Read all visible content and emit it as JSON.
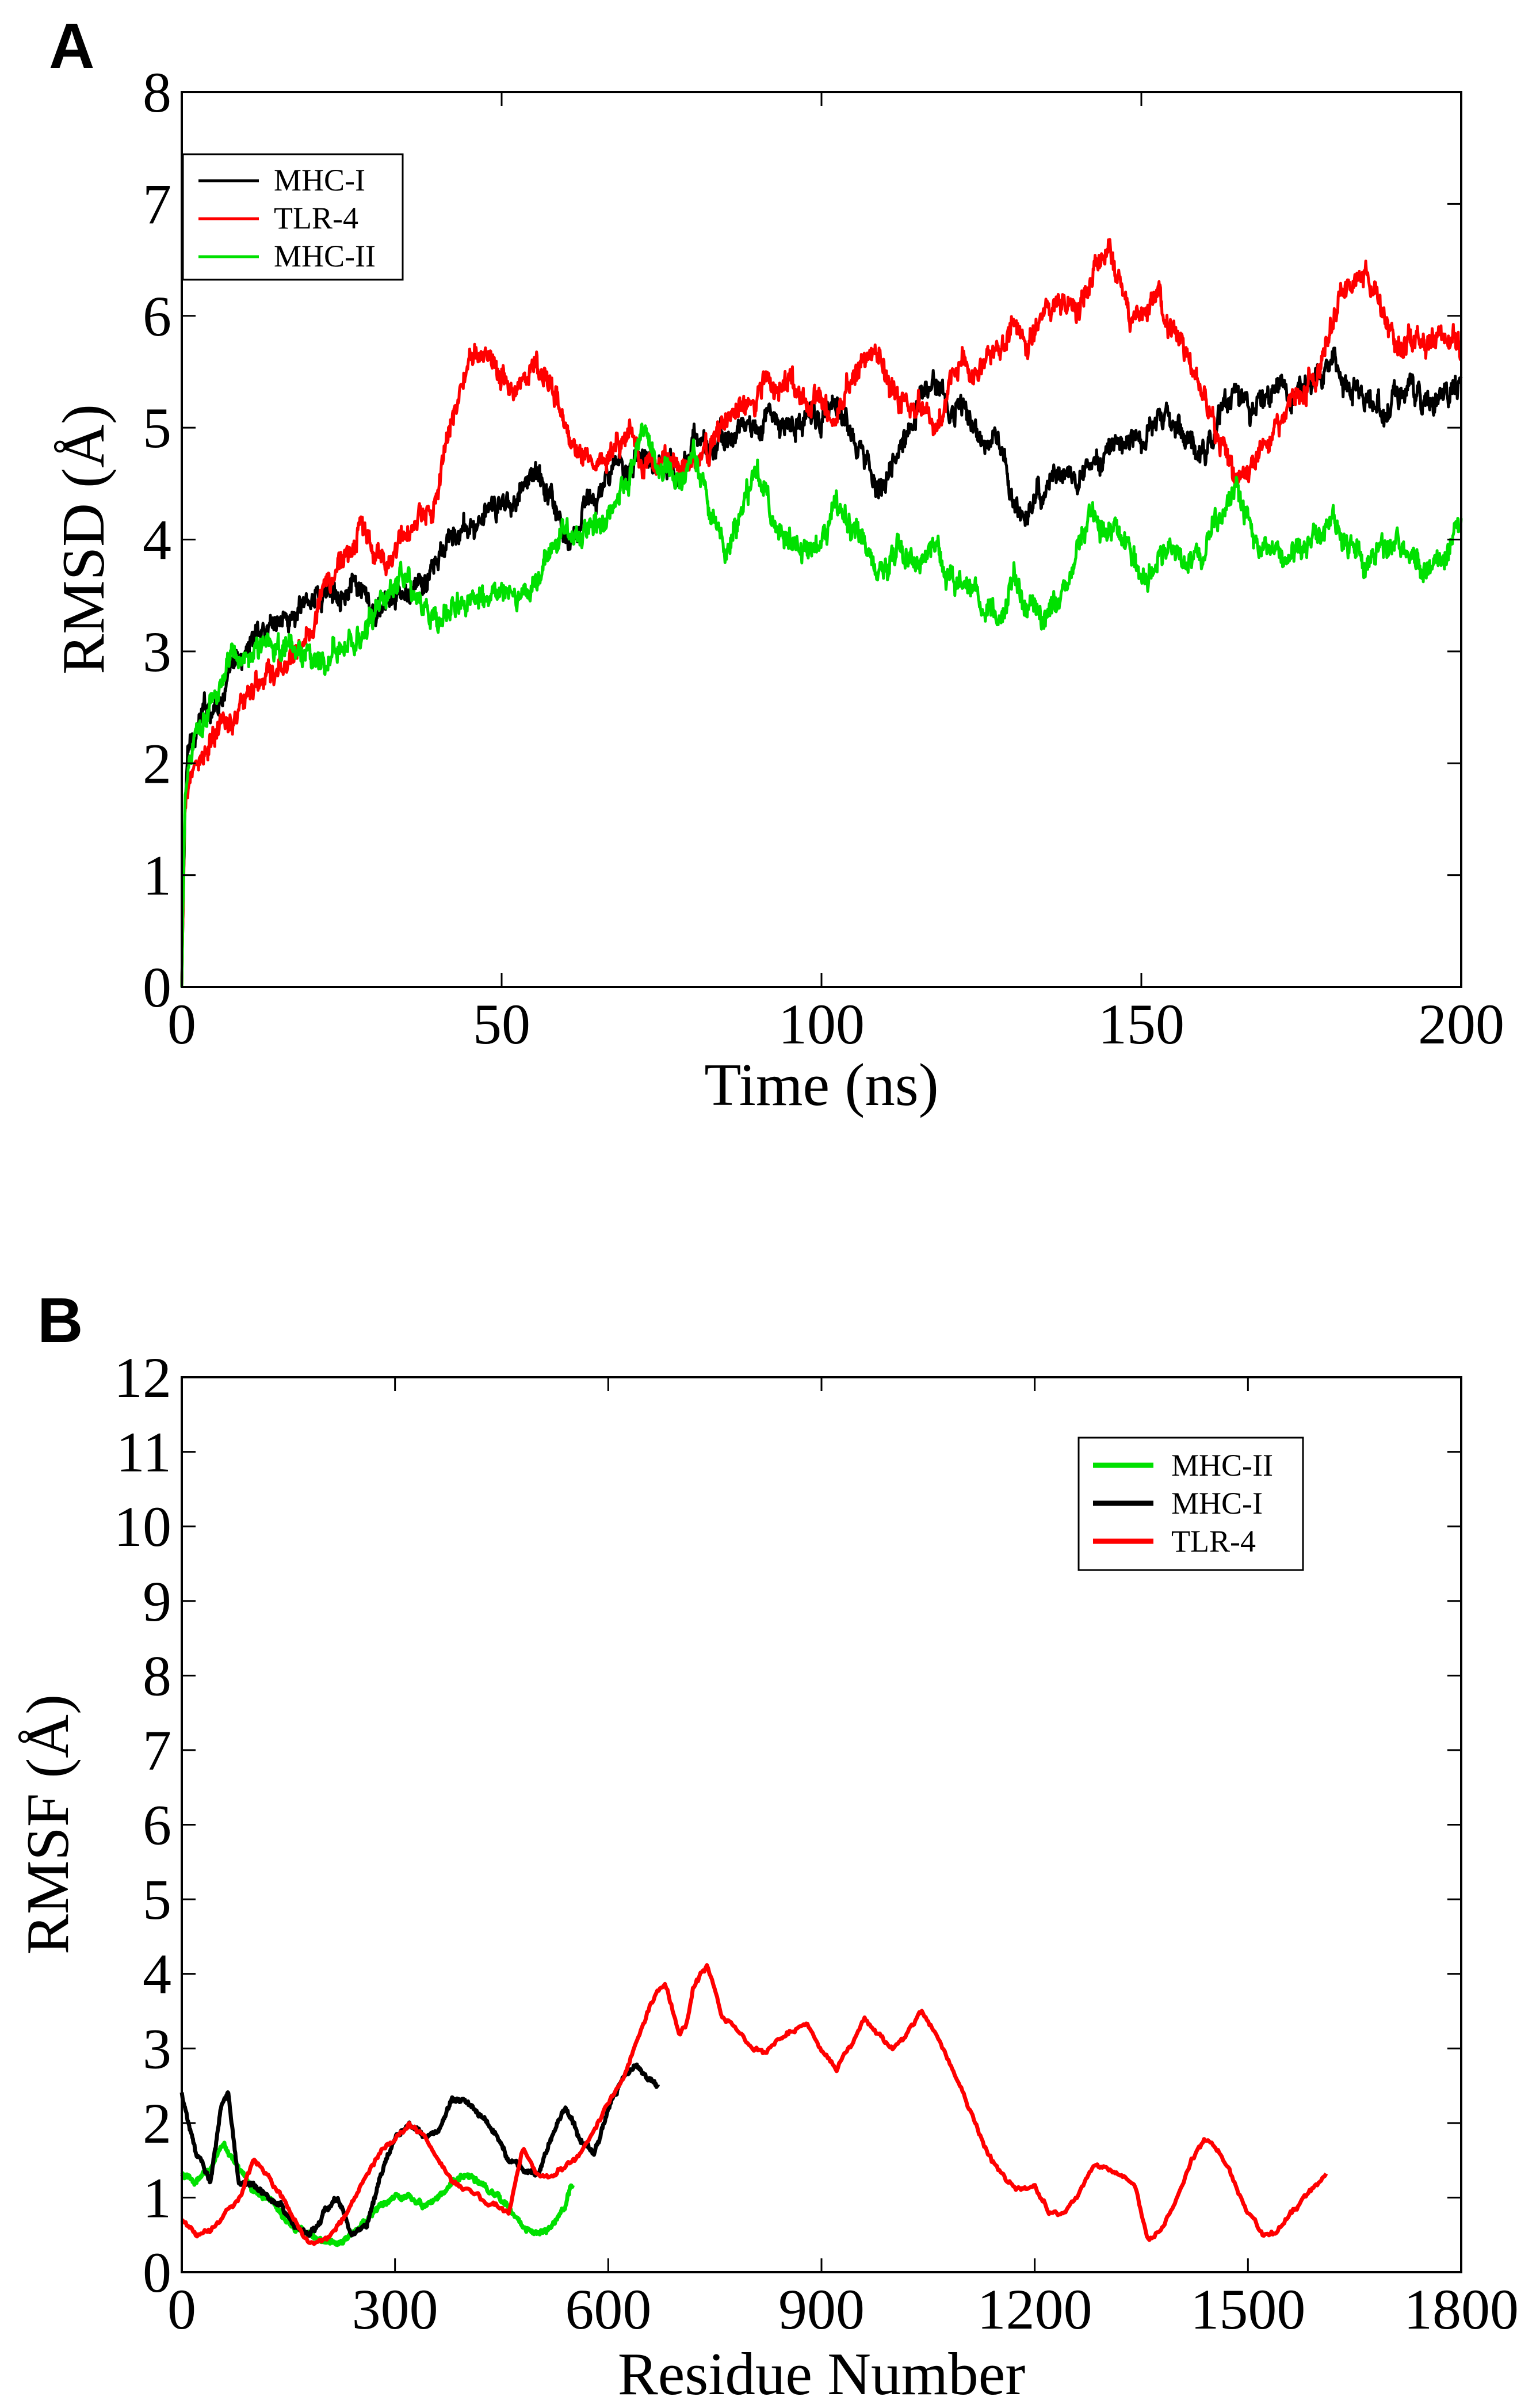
{
  "chart_data": [
    {
      "panel_label": "A",
      "type": "line",
      "xlabel": "Time (ns)",
      "ylabel": "RMSD (Å)",
      "xlim": [
        0,
        200
      ],
      "ylim": [
        0,
        8
      ],
      "xticks": [
        0,
        50,
        100,
        150,
        200
      ],
      "xtick_labels": [
        "0",
        "50",
        "100",
        "150",
        "200"
      ],
      "yticks": [
        0,
        1,
        2,
        3,
        4,
        5,
        6,
        7,
        8
      ],
      "ytick_labels": [
        "0",
        "1",
        "2",
        "3",
        "4",
        "5",
        "6",
        "7",
        "8"
      ],
      "grid": false,
      "legend_position": "top-left",
      "noise_amplitude": 0.12,
      "series": [
        {
          "name": "MHC-I",
          "color": "#000000",
          "x": [
            0,
            0.5,
            1,
            2,
            4,
            6,
            8,
            10,
            12,
            15,
            18,
            20,
            22,
            25,
            28,
            30,
            32,
            35,
            38,
            40,
            42,
            45,
            48,
            50,
            52,
            55,
            58,
            60,
            62,
            65,
            68,
            70,
            72,
            75,
            78,
            80,
            82,
            85,
            88,
            90,
            92,
            95,
            98,
            100,
            102,
            105,
            108,
            110,
            112,
            115,
            118,
            120,
            122,
            125,
            128,
            130,
            132,
            135,
            138,
            140,
            142,
            145,
            148,
            150,
            152,
            155,
            158,
            160,
            162,
            165,
            168,
            170,
            172,
            175,
            178,
            180,
            182,
            185,
            188,
            190,
            192,
            195,
            198,
            200
          ],
          "values": [
            0,
            1.6,
            2.1,
            2.3,
            2.5,
            2.6,
            2.8,
            3.0,
            3.2,
            3.3,
            3.3,
            3.5,
            3.5,
            3.6,
            3.5,
            3.3,
            3.4,
            3.5,
            3.6,
            3.8,
            4.0,
            4.1,
            4.2,
            4.3,
            4.4,
            4.6,
            4.4,
            4.0,
            4.2,
            4.4,
            4.6,
            4.7,
            4.8,
            4.7,
            4.6,
            4.9,
            4.8,
            4.9,
            5.0,
            5.0,
            5.1,
            5.0,
            5.1,
            5.0,
            5.2,
            5.0,
            4.6,
            4.5,
            4.7,
            5.2,
            5.4,
            5.2,
            5.2,
            4.9,
            4.8,
            4.3,
            4.2,
            4.5,
            4.6,
            4.5,
            4.7,
            4.8,
            4.9,
            4.9,
            5.1,
            5.0,
            4.8,
            4.8,
            5.1,
            5.3,
            5.1,
            5.3,
            5.4,
            5.3,
            5.5,
            5.6,
            5.4,
            5.3,
            5.2,
            5.3,
            5.4,
            5.2,
            5.3,
            5.4
          ]
        },
        {
          "name": "TLR-4",
          "color": "#ff0000",
          "x": [
            0,
            0.5,
            1,
            2,
            4,
            6,
            8,
            10,
            12,
            15,
            18,
            20,
            22,
            25,
            28,
            30,
            32,
            35,
            38,
            40,
            42,
            45,
            48,
            50,
            52,
            55,
            58,
            60,
            62,
            65,
            68,
            70,
            72,
            75,
            78,
            80,
            82,
            85,
            88,
            90,
            92,
            95,
            98,
            100,
            102,
            105,
            108,
            110,
            112,
            115,
            118,
            120,
            122,
            125,
            128,
            130,
            132,
            135,
            138,
            140,
            142,
            145,
            148,
            150,
            152,
            155,
            158,
            160,
            162,
            165,
            168,
            170,
            172,
            175,
            178,
            180,
            182,
            185,
            188,
            190,
            192,
            195,
            198,
            200
          ],
          "values": [
            0,
            1.5,
            1.8,
            2.0,
            2.1,
            2.3,
            2.4,
            2.6,
            2.7,
            2.8,
            3.0,
            3.2,
            3.5,
            3.8,
            4.1,
            3.9,
            3.8,
            4.0,
            4.2,
            4.4,
            5.0,
            5.6,
            5.7,
            5.5,
            5.3,
            5.6,
            5.3,
            5.0,
            4.8,
            4.7,
            4.9,
            5.0,
            4.7,
            4.8,
            4.6,
            4.7,
            4.8,
            5.0,
            5.2,
            5.3,
            5.4,
            5.4,
            5.2,
            5.3,
            5.1,
            5.4,
            5.8,
            5.5,
            5.2,
            5.3,
            5.0,
            5.4,
            5.6,
            5.5,
            5.8,
            5.9,
            5.7,
            6.0,
            6.2,
            6.0,
            6.3,
            6.6,
            6.1,
            6.0,
            6.2,
            5.9,
            5.5,
            5.3,
            4.9,
            4.6,
            4.7,
            4.9,
            5.1,
            5.3,
            5.5,
            6.0,
            6.3,
            6.4,
            6.0,
            5.7,
            5.8,
            5.7,
            5.9,
            5.8
          ]
        },
        {
          "name": "MHC-II",
          "color": "#00e000",
          "x": [
            0,
            0.5,
            1,
            2,
            4,
            6,
            8,
            10,
            12,
            15,
            18,
            20,
            22,
            25,
            28,
            30,
            32,
            35,
            38,
            40,
            42,
            45,
            48,
            50,
            52,
            55,
            58,
            60,
            62,
            65,
            68,
            70,
            72,
            75,
            78,
            80,
            82,
            85,
            88,
            90,
            92,
            95,
            98,
            100,
            102,
            105,
            108,
            110,
            112,
            115,
            118,
            120,
            122,
            125,
            128,
            130,
            132,
            135,
            138,
            140,
            142,
            145,
            148,
            150,
            152,
            155,
            158,
            160,
            162,
            165,
            168,
            170,
            172,
            175,
            178,
            180,
            182,
            185,
            188,
            190,
            192,
            195,
            198,
            200
          ],
          "values": [
            0,
            1.7,
            2.0,
            2.3,
            2.5,
            2.7,
            2.9,
            3.0,
            3.0,
            3.1,
            3.0,
            3.0,
            2.9,
            3.0,
            3.1,
            3.3,
            3.5,
            3.6,
            3.4,
            3.3,
            3.4,
            3.5,
            3.4,
            3.5,
            3.4,
            3.6,
            3.9,
            4.1,
            4.0,
            4.2,
            4.3,
            4.6,
            5.0,
            4.6,
            4.5,
            4.7,
            4.3,
            3.8,
            4.4,
            4.6,
            4.2,
            4.0,
            3.8,
            4.0,
            4.3,
            4.1,
            3.8,
            3.7,
            3.9,
            3.8,
            3.9,
            3.7,
            3.6,
            3.4,
            3.3,
            3.6,
            3.5,
            3.3,
            3.5,
            4.0,
            4.2,
            4.1,
            3.9,
            3.7,
            3.7,
            3.9,
            3.8,
            3.9,
            4.2,
            4.4,
            4.0,
            3.9,
            3.8,
            3.9,
            4.0,
            4.2,
            4.0,
            3.8,
            3.9,
            4.0,
            3.8,
            3.7,
            3.9,
            4.1
          ]
        }
      ]
    },
    {
      "panel_label": "B",
      "type": "line",
      "xlabel": "Residue Number",
      "ylabel": "RMSF (Å)",
      "xlim": [
        0,
        1800
      ],
      "ylim": [
        0,
        12
      ],
      "xticks": [
        0,
        300,
        600,
        900,
        1200,
        1500,
        1800
      ],
      "xtick_labels": [
        "0",
        "300",
        "600",
        "900",
        "1200",
        "1500",
        "1800"
      ],
      "yticks": [
        0,
        1,
        2,
        3,
        4,
        5,
        6,
        7,
        8,
        9,
        10,
        11,
        12
      ],
      "ytick_labels": [
        "0",
        "1",
        "2",
        "3",
        "4",
        "5",
        "6",
        "7",
        "8",
        "9",
        "10",
        "11",
        "12"
      ],
      "grid": false,
      "legend_position": "top-right",
      "noise_amplitude": 0.04,
      "series": [
        {
          "name": "MHC-II",
          "color": "#00e000",
          "x": [
            0,
            20,
            40,
            60,
            80,
            100,
            120,
            140,
            160,
            180,
            200,
            220,
            240,
            260,
            280,
            300,
            320,
            340,
            360,
            380,
            400,
            420,
            440,
            460,
            480,
            500,
            520,
            540,
            550
          ],
          "values": [
            1.3,
            1.2,
            1.4,
            1.7,
            1.4,
            1.1,
            1.0,
            0.8,
            0.6,
            0.5,
            0.4,
            0.4,
            0.5,
            0.7,
            0.9,
            1.0,
            1.0,
            0.9,
            1.0,
            1.2,
            1.3,
            1.2,
            1.0,
            0.9,
            0.6,
            0.5,
            0.6,
            0.9,
            1.2
          ]
        },
        {
          "name": "MHC-I",
          "color": "#000000",
          "x": [
            0,
            20,
            40,
            55,
            65,
            80,
            100,
            120,
            140,
            160,
            180,
            200,
            220,
            240,
            260,
            280,
            300,
            320,
            340,
            360,
            380,
            400,
            420,
            440,
            460,
            480,
            500,
            520,
            540,
            560,
            580,
            600,
            620,
            640,
            660,
            670
          ],
          "values": [
            2.4,
            1.6,
            1.2,
            2.2,
            2.4,
            1.2,
            1.2,
            1.0,
            0.9,
            0.6,
            0.5,
            0.8,
            1.0,
            0.5,
            0.6,
            1.3,
            1.8,
            2.0,
            1.8,
            1.9,
            2.3,
            2.3,
            2.1,
            1.9,
            1.5,
            1.4,
            1.3,
            1.8,
            2.2,
            1.8,
            1.6,
            2.2,
            2.6,
            2.8,
            2.6,
            2.5
          ]
        },
        {
          "name": "TLR-4",
          "color": "#ff0000",
          "x": [
            0,
            20,
            40,
            60,
            80,
            100,
            120,
            140,
            160,
            180,
            200,
            220,
            240,
            260,
            280,
            300,
            320,
            340,
            360,
            380,
            400,
            420,
            440,
            460,
            480,
            500,
            520,
            540,
            560,
            580,
            600,
            620,
            640,
            660,
            680,
            700,
            710,
            720,
            740,
            760,
            780,
            800,
            820,
            840,
            860,
            880,
            900,
            920,
            940,
            960,
            980,
            1000,
            1020,
            1040,
            1060,
            1080,
            1100,
            1120,
            1140,
            1160,
            1180,
            1200,
            1220,
            1240,
            1260,
            1280,
            1300,
            1320,
            1340,
            1360,
            1380,
            1400,
            1420,
            1440,
            1460,
            1480,
            1500,
            1520,
            1540,
            1560,
            1580,
            1600,
            1610
          ],
          "values": [
            0.7,
            0.5,
            0.6,
            0.8,
            1.0,
            1.5,
            1.3,
            1.0,
            0.7,
            0.4,
            0.4,
            0.6,
            0.9,
            1.3,
            1.6,
            1.8,
            2.0,
            1.8,
            1.5,
            1.2,
            1.1,
            1.0,
            0.9,
            0.8,
            1.7,
            1.3,
            1.3,
            1.4,
            1.6,
            1.9,
            2.3,
            2.6,
            3.1,
            3.6,
            3.9,
            3.2,
            3.3,
            3.8,
            4.1,
            3.4,
            3.3,
            3.0,
            2.9,
            3.1,
            3.2,
            3.3,
            3.0,
            2.7,
            3.0,
            3.4,
            3.2,
            3.0,
            3.2,
            3.5,
            3.2,
            2.8,
            2.4,
            1.9,
            1.5,
            1.2,
            1.1,
            1.2,
            0.8,
            0.8,
            1.0,
            1.4,
            1.4,
            1.3,
            1.2,
            0.4,
            0.6,
            1.0,
            1.5,
            1.8,
            1.6,
            1.2,
            0.8,
            0.5,
            0.5,
            0.8,
            1.0,
            1.2,
            1.3
          ]
        }
      ]
    }
  ]
}
